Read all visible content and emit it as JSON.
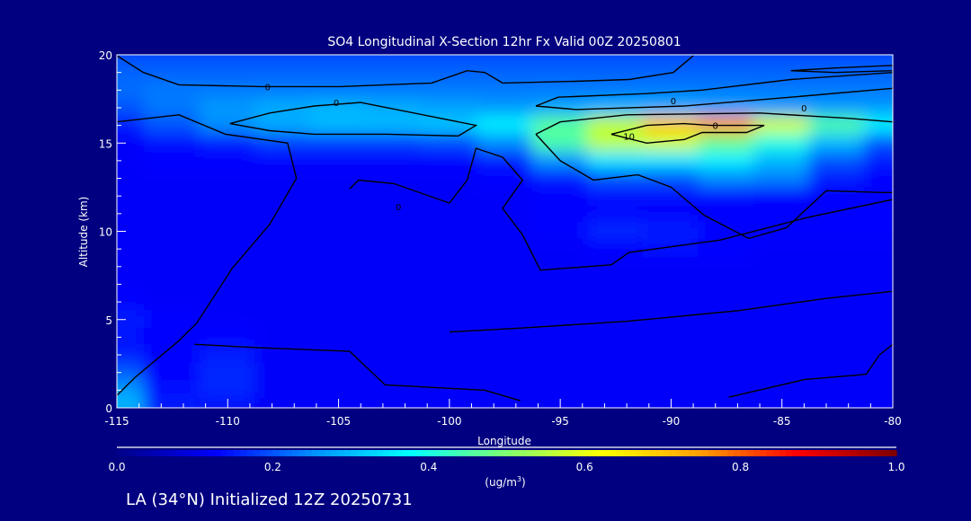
{
  "chart_data": {
    "type": "heatmap",
    "title": "SO4 Longitudinal X-Section 12hr  Fx Valid 00Z 20250801",
    "xlabel": "Longitude",
    "ylabel": "Altitude (km)",
    "xlim": [
      -115,
      -80
    ],
    "ylim": [
      0,
      20
    ],
    "xticks": [
      "-115",
      "-110",
      "-105",
      "-100",
      "-95",
      "-90",
      "-85",
      "-80"
    ],
    "xtick_values": [
      -115,
      -110,
      -105,
      -100,
      -95,
      -90,
      -85,
      -80
    ],
    "yticks": [
      "0",
      "5",
      "10",
      "15",
      "20"
    ],
    "ytick_values": [
      0,
      5,
      10,
      15,
      20
    ],
    "colorbar": {
      "range": [
        0.0,
        1.0
      ],
      "ticks": [
        "0.0",
        "0.2",
        "0.4",
        "0.6",
        "0.8",
        "1.0"
      ],
      "units": "(ug/m",
      "units_sup": "3",
      "units_close": ")",
      "colors": [
        "#00008c",
        "#0000ff",
        "#0090ff",
        "#00ffff",
        "#80ff70",
        "#ffff00",
        "#ffa000",
        "#ff0000",
        "#800000"
      ]
    },
    "grid_lon": [
      -115,
      -112.5,
      -110,
      -107.5,
      -105,
      -102.5,
      -100,
      -97.5,
      -95,
      -92.5,
      -90,
      -87.5,
      -85,
      -82.5,
      -80
    ],
    "grid_alt": [
      20,
      19,
      18,
      17,
      16,
      15,
      14,
      13,
      12,
      11,
      10,
      9,
      8,
      7,
      6,
      5,
      4,
      3,
      2,
      1,
      0
    ],
    "values": [
      [
        0.19,
        0.19,
        0.19,
        0.19,
        0.19,
        0.19,
        0.19,
        0.19,
        0.19,
        0.19,
        0.19,
        0.19,
        0.19,
        0.19,
        0.19
      ],
      [
        0.21,
        0.21,
        0.21,
        0.21,
        0.21,
        0.21,
        0.21,
        0.21,
        0.21,
        0.21,
        0.21,
        0.21,
        0.21,
        0.21,
        0.21
      ],
      [
        0.22,
        0.23,
        0.23,
        0.23,
        0.23,
        0.23,
        0.23,
        0.23,
        0.23,
        0.23,
        0.23,
        0.23,
        0.23,
        0.23,
        0.23
      ],
      [
        0.2,
        0.23,
        0.26,
        0.28,
        0.29,
        0.28,
        0.27,
        0.26,
        0.27,
        0.28,
        0.28,
        0.27,
        0.26,
        0.26,
        0.26
      ],
      [
        0.15,
        0.2,
        0.25,
        0.28,
        0.3,
        0.3,
        0.31,
        0.36,
        0.46,
        0.56,
        0.7,
        0.76,
        0.58,
        0.45,
        0.36
      ],
      [
        0.12,
        0.14,
        0.15,
        0.18,
        0.18,
        0.18,
        0.19,
        0.25,
        0.45,
        0.56,
        0.58,
        0.48,
        0.4,
        0.3,
        0.2
      ],
      [
        0.12,
        0.13,
        0.13,
        0.13,
        0.13,
        0.13,
        0.13,
        0.15,
        0.26,
        0.35,
        0.35,
        0.36,
        0.3,
        0.2,
        0.15
      ],
      [
        0.12,
        0.12,
        0.12,
        0.12,
        0.12,
        0.12,
        0.12,
        0.13,
        0.15,
        0.2,
        0.2,
        0.25,
        0.24,
        0.15,
        0.13
      ],
      [
        0.12,
        0.12,
        0.12,
        0.12,
        0.12,
        0.12,
        0.12,
        0.12,
        0.13,
        0.14,
        0.14,
        0.14,
        0.13,
        0.13,
        0.13
      ],
      [
        0.12,
        0.12,
        0.12,
        0.12,
        0.12,
        0.12,
        0.12,
        0.12,
        0.13,
        0.13,
        0.13,
        0.13,
        0.13,
        0.13,
        0.13
      ],
      [
        0.12,
        0.12,
        0.12,
        0.12,
        0.12,
        0.12,
        0.12,
        0.12,
        0.13,
        0.16,
        0.15,
        0.13,
        0.13,
        0.13,
        0.13
      ],
      [
        0.12,
        0.12,
        0.12,
        0.12,
        0.12,
        0.12,
        0.12,
        0.12,
        0.12,
        0.13,
        0.14,
        0.13,
        0.12,
        0.12,
        0.12
      ],
      [
        0.12,
        0.12,
        0.12,
        0.12,
        0.12,
        0.12,
        0.12,
        0.12,
        0.12,
        0.12,
        0.12,
        0.12,
        0.12,
        0.12,
        0.12
      ],
      [
        0.12,
        0.12,
        0.12,
        0.12,
        0.12,
        0.12,
        0.12,
        0.12,
        0.12,
        0.12,
        0.12,
        0.12,
        0.12,
        0.12,
        0.12
      ],
      [
        0.13,
        0.12,
        0.12,
        0.12,
        0.12,
        0.12,
        0.12,
        0.12,
        0.12,
        0.12,
        0.12,
        0.12,
        0.12,
        0.12,
        0.12
      ],
      [
        0.15,
        0.13,
        0.12,
        0.12,
        0.12,
        0.12,
        0.12,
        0.12,
        0.12,
        0.12,
        0.12,
        0.12,
        0.12,
        0.12,
        0.12
      ],
      [
        0.14,
        0.13,
        0.13,
        0.12,
        0.12,
        0.12,
        0.12,
        0.12,
        0.12,
        0.12,
        0.12,
        0.12,
        0.12,
        0.12,
        0.12
      ],
      [
        0.15,
        0.13,
        0.15,
        0.12,
        0.12,
        0.12,
        0.12,
        0.12,
        0.12,
        0.12,
        0.12,
        0.12,
        0.12,
        0.12,
        0.12
      ],
      [
        0.2,
        0.13,
        0.16,
        0.12,
        0.12,
        0.12,
        0.12,
        0.12,
        0.12,
        0.12,
        0.12,
        0.12,
        0.12,
        0.12,
        0.12
      ],
      [
        0.26,
        0.14,
        0.16,
        0.12,
        0.12,
        0.12,
        0.12,
        0.12,
        0.12,
        0.12,
        0.12,
        0.12,
        0.12,
        0.12,
        0.12
      ],
      [
        0.3,
        0.15,
        0.14,
        0.12,
        0.12,
        0.12,
        0.12,
        0.12,
        0.12,
        0.12,
        0.12,
        0.12,
        0.12,
        0.12,
        0.12
      ]
    ],
    "contours": [
      {
        "label": "0",
        "label_at": [
          -108.2,
          18.2
        ],
        "points": [
          [
            -115,
            19.95
          ],
          [
            -113.8,
            19.0
          ],
          [
            -112.2,
            18.3
          ],
          [
            -108.5,
            18.2
          ],
          [
            -104.9,
            18.2
          ],
          [
            -100.8,
            18.4
          ],
          [
            -99.2,
            19.1
          ],
          [
            -98.4,
            19.0
          ],
          [
            -97.6,
            18.4
          ],
          [
            -94.3,
            18.5
          ],
          [
            -91.9,
            18.6
          ],
          [
            -89.9,
            19.0
          ],
          [
            -89.0,
            19.95
          ]
        ]
      },
      {
        "label": "0",
        "label_at": [
          -105.1,
          17.3
        ],
        "points": [
          [
            -109.9,
            16.1
          ],
          [
            -108.1,
            16.7
          ],
          [
            -106.1,
            17.1
          ],
          [
            -104.0,
            17.3
          ],
          [
            -101.6,
            16.7
          ],
          [
            -98.8,
            16.0
          ],
          [
            -99.6,
            15.4
          ],
          [
            -102.8,
            15.5
          ],
          [
            -106.1,
            15.5
          ],
          [
            -108.1,
            15.7
          ],
          [
            -109.9,
            16.1
          ]
        ]
      },
      {
        "label": "0",
        "label_at": [
          -89.9,
          17.4
        ],
        "points": [
          [
            -96.1,
            17.1
          ],
          [
            -95.1,
            17.6
          ],
          [
            -91.1,
            17.8
          ],
          [
            -88.6,
            18.0
          ],
          [
            -84.6,
            18.6
          ],
          [
            -80,
            19.0
          ],
          [
            -80,
            18.1
          ],
          [
            -84.6,
            17.6
          ],
          [
            -89.4,
            17.1
          ],
          [
            -94.3,
            16.9
          ],
          [
            -96.1,
            17.1
          ]
        ]
      },
      {
        "label": "0",
        "label_at": [
          -84.0,
          17.0
        ],
        "points": [
          [
            -84.6,
            19.1
          ],
          [
            -82.6,
            19.25
          ],
          [
            -80,
            19.4
          ],
          [
            -80,
            19.1
          ],
          [
            -82.6,
            19.0
          ],
          [
            -84.6,
            19.1
          ]
        ]
      },
      {
        "label": "10",
        "label_at": [
          -91.9,
          15.4
        ],
        "points": [
          [
            -92.7,
            15.5
          ],
          [
            -91.1,
            16.0
          ],
          [
            -89.4,
            16.1
          ],
          [
            -88.2,
            16.0
          ],
          [
            -85.8,
            16.0
          ],
          [
            -86.6,
            15.6
          ],
          [
            -88.6,
            15.6
          ],
          [
            -89.4,
            15.2
          ],
          [
            -91.1,
            15.0
          ],
          [
            -92.7,
            15.5
          ]
        ]
      },
      {
        "label": "0",
        "label_at": [
          -88.0,
          16.0
        ],
        "points": [
          [
            -96.1,
            15.5
          ],
          [
            -95.0,
            16.2
          ],
          [
            -92.0,
            16.6
          ],
          [
            -86.0,
            16.7
          ],
          [
            -82.0,
            16.4
          ],
          [
            -80,
            16.2
          ]
        ]
      },
      {
        "label": "",
        "label_at": null,
        "points": [
          [
            -115,
            16.2
          ],
          [
            -112.2,
            16.6
          ],
          [
            -110.1,
            15.5
          ],
          [
            -107.3,
            15.0
          ],
          [
            -106.9,
            13.0
          ],
          [
            -108.1,
            10.4
          ],
          [
            -109.8,
            7.9
          ],
          [
            -111.4,
            4.8
          ],
          [
            -112.2,
            3.8
          ],
          [
            -114.2,
            1.7
          ],
          [
            -115,
            0.7
          ]
        ]
      },
      {
        "label": "0",
        "label_at": [
          -102.3,
          11.4
        ],
        "points": [
          [
            -104.5,
            12.4
          ],
          [
            -104.1,
            12.9
          ],
          [
            -102.5,
            12.7
          ],
          [
            -100.0,
            11.6
          ],
          [
            -99.2,
            12.9
          ],
          [
            -98.8,
            14.7
          ],
          [
            -97.6,
            14.2
          ],
          [
            -96.7,
            12.9
          ],
          [
            -97.6,
            11.3
          ],
          [
            -96.7,
            9.8
          ],
          [
            -95.9,
            7.8
          ],
          [
            -92.7,
            8.1
          ],
          [
            -91.9,
            8.8
          ],
          [
            -87.8,
            9.5
          ],
          [
            -83.8,
            10.8
          ],
          [
            -80,
            11.8
          ]
        ]
      },
      {
        "label": "",
        "label_at": null,
        "points": [
          [
            -96.1,
            15.5
          ],
          [
            -95.0,
            14.0
          ],
          [
            -93.5,
            12.9
          ],
          [
            -91.5,
            13.2
          ],
          [
            -90.0,
            12.5
          ],
          [
            -88.5,
            10.9
          ],
          [
            -86.5,
            9.6
          ],
          [
            -84.8,
            10.2
          ],
          [
            -83.0,
            12.3
          ],
          [
            -80.5,
            12.2
          ],
          [
            -80,
            12.2
          ]
        ]
      },
      {
        "label": "",
        "label_at": null,
        "points": [
          [
            -111.5,
            3.6
          ],
          [
            -108.5,
            3.4
          ],
          [
            -104.5,
            3.2
          ],
          [
            -102.9,
            1.3
          ],
          [
            -98.4,
            1.0
          ],
          [
            -96.8,
            0.4
          ]
        ]
      },
      {
        "label": "",
        "label_at": null,
        "points": [
          [
            -87.4,
            0.6
          ],
          [
            -84.0,
            1.6
          ],
          [
            -81.2,
            1.9
          ],
          [
            -80.6,
            3.0
          ],
          [
            -80,
            3.6
          ]
        ]
      },
      {
        "label": "",
        "label_at": null,
        "points": [
          [
            -80,
            6.6
          ],
          [
            -83.0,
            6.2
          ],
          [
            -87.0,
            5.5
          ],
          [
            -92.0,
            4.9
          ],
          [
            -97.0,
            4.5
          ],
          [
            -100.0,
            4.3
          ]
        ]
      }
    ]
  },
  "footer": {
    "init_text": "LA (34°N) Initialized 12Z 20250731"
  }
}
